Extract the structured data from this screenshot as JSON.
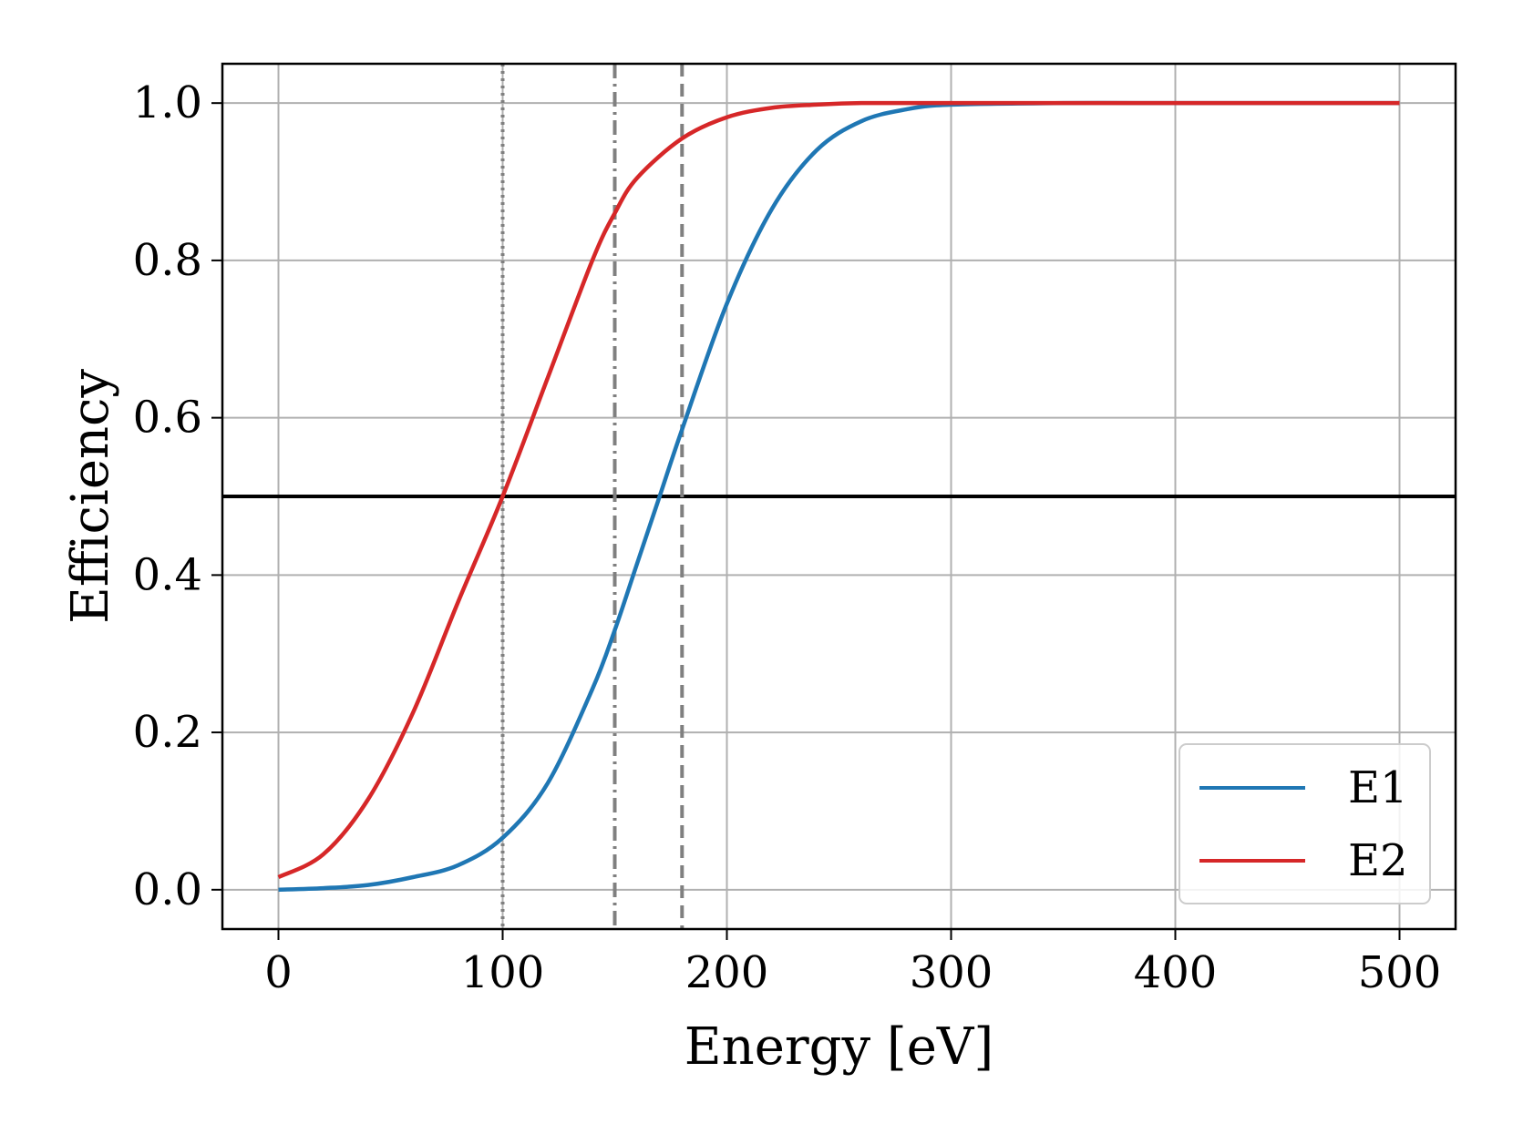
{
  "chart_data": {
    "type": "line",
    "title": "",
    "xlabel": "Energy [eV]",
    "ylabel": "Efficiency",
    "xlim": [
      -25,
      525
    ],
    "ylim": [
      -0.05,
      1.05
    ],
    "xticks": [
      0,
      100,
      200,
      300,
      400,
      500
    ],
    "xtick_labels": [
      "0",
      "100",
      "200",
      "300",
      "400",
      "500"
    ],
    "yticks": [
      0.0,
      0.2,
      0.4,
      0.6,
      0.8,
      1.0
    ],
    "ytick_labels": [
      "0.0",
      "0.2",
      "0.4",
      "0.6",
      "0.8",
      "1.0"
    ],
    "grid": true,
    "legend_position": "lower-right",
    "series": [
      {
        "name": "E1",
        "color": "#1f77b4",
        "x": [
          0,
          20,
          40,
          60,
          80,
          100,
          120,
          140,
          150,
          160,
          170,
          180,
          200,
          220,
          240,
          260,
          280,
          300,
          350,
          400,
          450,
          500
        ],
        "y": [
          0.0,
          0.002,
          0.006,
          0.016,
          0.031,
          0.066,
          0.135,
          0.255,
          0.33,
          0.415,
          0.5,
          0.585,
          0.745,
          0.865,
          0.94,
          0.977,
          0.992,
          0.998,
          1.0,
          1.0,
          1.0,
          1.0
        ]
      },
      {
        "name": "E2",
        "color": "#d62728",
        "x": [
          0,
          20,
          40,
          60,
          80,
          100,
          120,
          140,
          150,
          160,
          180,
          200,
          220,
          240,
          260,
          300,
          350,
          400,
          450,
          500
        ],
        "y": [
          0.016,
          0.045,
          0.115,
          0.225,
          0.365,
          0.5,
          0.65,
          0.8,
          0.86,
          0.905,
          0.955,
          0.982,
          0.994,
          0.998,
          1.0,
          1.0,
          1.0,
          1.0,
          1.0,
          1.0
        ]
      }
    ],
    "reference_lines": [
      {
        "orientation": "horizontal",
        "value": 0.5,
        "style": "solid",
        "color": "#000000"
      },
      {
        "orientation": "vertical",
        "value": 100,
        "style": "dotted",
        "color": "#808080"
      },
      {
        "orientation": "vertical",
        "value": 150,
        "style": "dashdot",
        "color": "#808080"
      },
      {
        "orientation": "vertical",
        "value": 180,
        "style": "dashed",
        "color": "#808080"
      }
    ]
  }
}
